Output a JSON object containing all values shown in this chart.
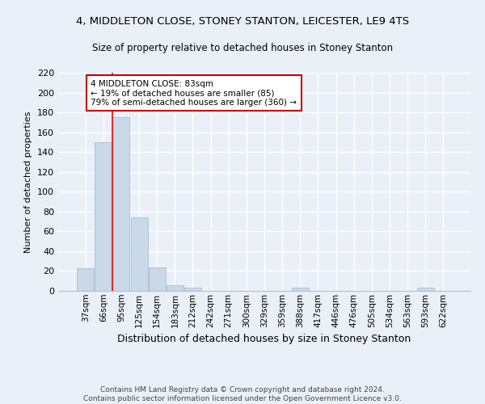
{
  "title": "4, MIDDLETON CLOSE, STONEY STANTON, LEICESTER, LE9 4TS",
  "subtitle": "Size of property relative to detached houses in Stoney Stanton",
  "xlabel": "Distribution of detached houses by size in Stoney Stanton",
  "ylabel": "Number of detached properties",
  "footer_line1": "Contains HM Land Registry data © Crown copyright and database right 2024.",
  "footer_line2": "Contains public sector information licensed under the Open Government Licence v3.0.",
  "categories": [
    "37sqm",
    "66sqm",
    "95sqm",
    "125sqm",
    "154sqm",
    "183sqm",
    "212sqm",
    "242sqm",
    "271sqm",
    "300sqm",
    "329sqm",
    "359sqm",
    "388sqm",
    "417sqm",
    "446sqm",
    "476sqm",
    "505sqm",
    "534sqm",
    "563sqm",
    "593sqm",
    "622sqm"
  ],
  "values": [
    23,
    150,
    175,
    74,
    24,
    6,
    3,
    0,
    0,
    0,
    0,
    0,
    3,
    0,
    0,
    0,
    0,
    0,
    0,
    3,
    0
  ],
  "bar_color": "#c9d9e8",
  "bar_edge_color": "#a0b8cc",
  "bg_color": "#eaf0f8",
  "grid_color": "#ffffff",
  "annotation_line1": "4 MIDDLETON CLOSE: 83sqm",
  "annotation_line2": "← 19% of detached houses are smaller (85)",
  "annotation_line3": "79% of semi-detached houses are larger (360) →",
  "annotation_box_color": "#ffffff",
  "annotation_box_edge_color": "#cc0000",
  "red_line_x": 1.5,
  "ylim": [
    0,
    220
  ],
  "yticks": [
    0,
    20,
    40,
    60,
    80,
    100,
    120,
    140,
    160,
    180,
    200,
    220
  ]
}
